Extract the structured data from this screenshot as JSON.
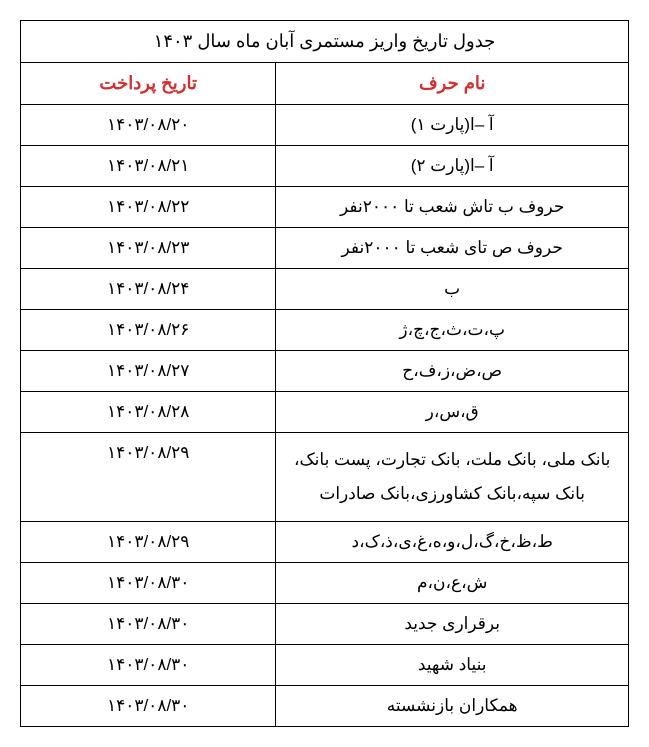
{
  "table": {
    "title": "جدول تاریخ واریز مستمری آبان ماه سال ۱۴۰۳",
    "headers": {
      "name": "نام حرف",
      "date": "تاریخ پرداخت"
    },
    "header_color": "#d32f2f",
    "border_color": "#000000",
    "text_color": "#000000",
    "background_color": "#ffffff",
    "font_size_body": 17,
    "font_size_header": 18,
    "column_widths": {
      "name": "58%",
      "date": "42%"
    },
    "rows": [
      {
        "name": "آ –ا(پارت ۱)",
        "date": "۱۴۰۳/۰۸/۲۰"
      },
      {
        "name": "آ –ا(پارت ۲)",
        "date": "۱۴۰۳/۰۸/۲۱"
      },
      {
        "name": "حروف ب تاش شعب تا ۲۰۰۰نفر",
        "date": "۱۴۰۳/۰۸/۲۲"
      },
      {
        "name": "حروف ص تای شعب تا ۲۰۰۰نفر",
        "date": "۱۴۰۳/۰۸/۲۳"
      },
      {
        "name": "ب",
        "date": "۱۴۰۳/۰۸/۲۴"
      },
      {
        "name": "پ،ت،ث،ج،چ،ژ",
        "date": "۱۴۰۳/۰۸/۲۶"
      },
      {
        "name": "ص،ض،ز،ف،ح",
        "date": "۱۴۰۳/۰۸/۲۷"
      },
      {
        "name": "ق،س،ر",
        "date": "۱۴۰۳/۰۸/۲۸"
      },
      {
        "name": "بانک ملی، بانک ملت، بانک تجارت، پست بانک، بانک سپه،بانک کشاورزی،بانک صادرات",
        "date": "۱۴۰۳/۰۸/۲۹"
      },
      {
        "name": "ط،ظ،خ،گ،ل،و،ه،غ،ی،ذ،ک،د",
        "date": "۱۴۰۳/۰۸/۲۹"
      },
      {
        "name": "ش،ع،ن،م",
        "date": "۱۴۰۳/۰۸/۳۰"
      },
      {
        "name": "برقراری جدید",
        "date": "۱۴۰۳/۰۸/۳۰"
      },
      {
        "name": "بنیاد شهید",
        "date": "۱۴۰۳/۰۸/۳۰"
      },
      {
        "name": "همکاران بازنشسته",
        "date": "۱۴۰۳/۰۸/۳۰"
      }
    ]
  }
}
